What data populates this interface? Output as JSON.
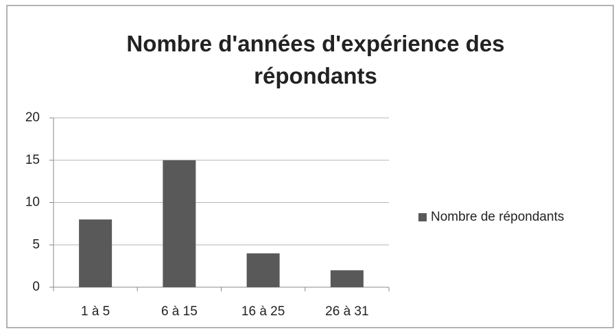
{
  "chart_data": {
    "type": "bar",
    "title": "Nombre d'années d'expérience des répondants",
    "categories": [
      "1 à 5",
      "6 à 15",
      "16 à 25",
      "26 à 31"
    ],
    "series": [
      {
        "name": "Nombre de répondants",
        "color": "#595959",
        "values": [
          8,
          15,
          4,
          2
        ]
      }
    ],
    "ylim": [
      0,
      20
    ],
    "yticks": [
      0,
      5,
      10,
      15,
      20
    ],
    "grid": true,
    "legend": "right"
  }
}
